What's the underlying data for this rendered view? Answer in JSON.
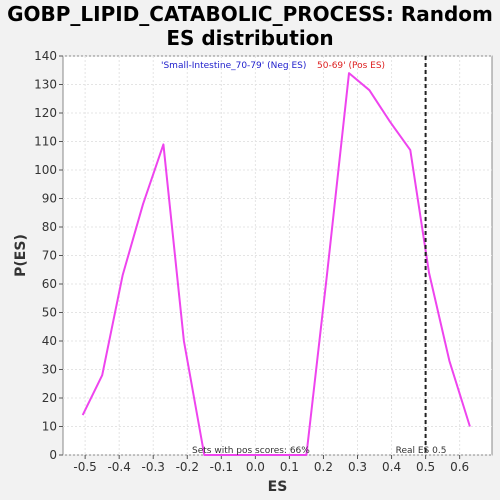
{
  "title_line1": "GOBP_LIPID_CATABOLIC_PROCESS: Random",
  "title_line2": "ES distribution",
  "chart_data": {
    "type": "line",
    "xlabel": "ES",
    "ylabel": "P(ES)",
    "xlim": [
      -0.565,
      0.695
    ],
    "ylim": [
      0,
      140
    ],
    "xticks": [
      -0.5,
      -0.4,
      -0.3,
      -0.2,
      -0.1,
      0.0,
      0.1,
      0.2,
      0.3,
      0.4,
      0.5,
      0.6
    ],
    "xtick_labels": [
      "-0.5",
      "-0.4",
      "-0.3",
      "-0.2",
      "-0.1",
      "0.0",
      "0.1",
      "0.2",
      "0.3",
      "0.4",
      "0.5",
      "0.6"
    ],
    "yticks": [
      0,
      10,
      20,
      30,
      40,
      50,
      60,
      70,
      80,
      90,
      100,
      110,
      120,
      130,
      140
    ],
    "grid": true,
    "series": [
      {
        "color": "#ee44ee",
        "x": [
          -0.507,
          -0.45,
          -0.39,
          -0.33,
          -0.27,
          -0.21,
          -0.15,
          0.15,
          0.21,
          0.275,
          0.335,
          0.395,
          0.455,
          0.51,
          0.57,
          0.63
        ],
        "y": [
          14,
          28,
          63,
          88,
          109,
          40,
          0,
          0,
          63,
          134,
          128,
          117,
          107,
          64,
          33,
          10
        ]
      }
    ],
    "real_es": {
      "value": 0.5,
      "label": "Real ES 0.5"
    },
    "annotations": {
      "neg_label": "'Small-Intestine_70-79' (Neg ES)",
      "pos_label": "50-69' (Pos ES)",
      "neg_color": "#2020cc",
      "pos_color": "#dd2020",
      "footer": "Sets with pos scores: 66%"
    }
  }
}
